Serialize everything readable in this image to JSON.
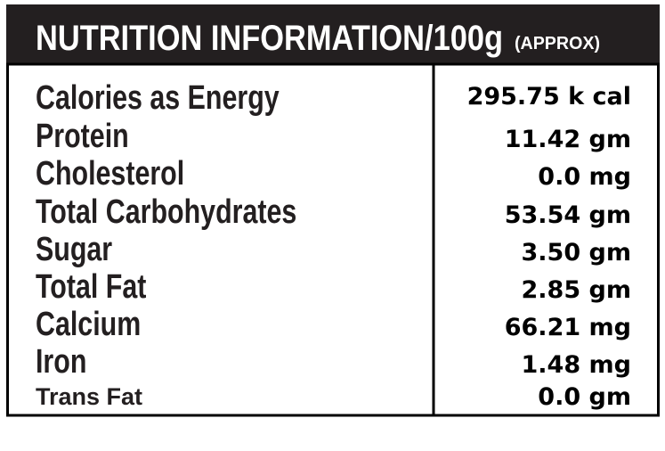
{
  "header": {
    "title": "NUTRITION INFORMATION/100g",
    "note": "(APPROX)"
  },
  "table": {
    "rows": [
      [
        "Calories as Energy",
        "295.75 k cal"
      ],
      [
        "Protein",
        "11.42 gm"
      ],
      [
        "Cholesterol",
        "0.0 mg"
      ],
      [
        "Total Carbohydrates",
        "53.54 gm"
      ],
      [
        "Sugar",
        "3.50 gm"
      ],
      [
        "Total Fat",
        "2.85 gm"
      ],
      [
        "Calcium",
        "66.21 mg"
      ],
      [
        "Iron",
        "1.48 mg"
      ],
      [
        "Trans Fat",
        "0.0 gm"
      ]
    ]
  }
}
